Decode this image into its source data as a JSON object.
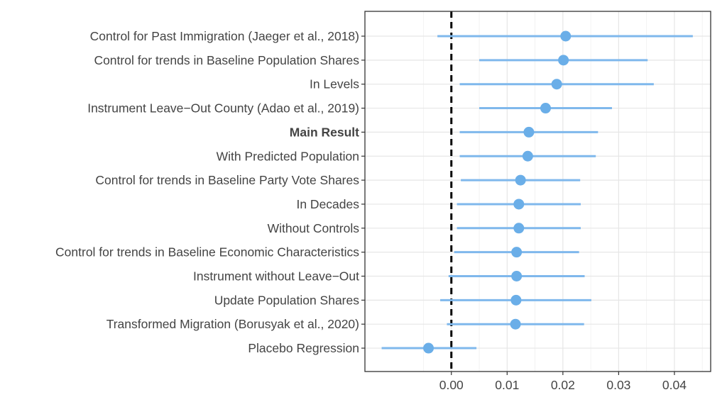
{
  "chart_data": {
    "type": "scatter",
    "subtype": "coefficient-plot",
    "title": "",
    "xlabel": "",
    "ylabel": "",
    "xlim": [
      -0.0155,
      0.0465
    ],
    "x_ticks": [
      {
        "value": 0.0,
        "label": "0.00"
      },
      {
        "value": 0.01,
        "label": "0.01"
      },
      {
        "value": 0.02,
        "label": "0.02"
      },
      {
        "value": 0.03,
        "label": "0.03"
      },
      {
        "value": 0.04,
        "label": "0.04"
      }
    ],
    "reference_line": {
      "x": 0,
      "style": "dashed",
      "color": "#000000"
    },
    "grid": true,
    "point_color": "#6aaee8",
    "line_color": "#7fb8ec",
    "items": [
      {
        "label": "Control for Past Immigration (Jaeger et al., 2018)",
        "estimate": 0.0205,
        "lower": -0.0025,
        "upper": 0.0433,
        "bold": false
      },
      {
        "label": "Control for trends in Baseline Population Shares",
        "estimate": 0.0201,
        "lower": 0.005,
        "upper": 0.0352,
        "bold": false
      },
      {
        "label": "In Levels",
        "estimate": 0.0189,
        "lower": 0.0015,
        "upper": 0.0363,
        "bold": false
      },
      {
        "label": "Instrument Leave−Out County (Adao et al., 2019)",
        "estimate": 0.0169,
        "lower": 0.005,
        "upper": 0.0288,
        "bold": false
      },
      {
        "label": "Main Result",
        "estimate": 0.0139,
        "lower": 0.0015,
        "upper": 0.0263,
        "bold": true
      },
      {
        "label": "With Predicted Population",
        "estimate": 0.0137,
        "lower": 0.0015,
        "upper": 0.0259,
        "bold": false
      },
      {
        "label": "Control for trends in Baseline Party Vote Shares",
        "estimate": 0.0124,
        "lower": 0.0017,
        "upper": 0.0231,
        "bold": false
      },
      {
        "label": "In Decades",
        "estimate": 0.0121,
        "lower": 0.001,
        "upper": 0.0232,
        "bold": false
      },
      {
        "label": "Without Controls",
        "estimate": 0.0121,
        "lower": 0.001,
        "upper": 0.0232,
        "bold": false
      },
      {
        "label": "Control for trends in Baseline Economic Characteristics",
        "estimate": 0.0117,
        "lower": 0.0005,
        "upper": 0.0229,
        "bold": false
      },
      {
        "label": "Instrument without Leave−Out",
        "estimate": 0.0117,
        "lower": -0.0005,
        "upper": 0.0239,
        "bold": false
      },
      {
        "label": "Update Population Shares",
        "estimate": 0.0116,
        "lower": -0.002,
        "upper": 0.0251,
        "bold": false
      },
      {
        "label": "Transformed Migration (Borusyak et al., 2020)",
        "estimate": 0.0115,
        "lower": -0.0008,
        "upper": 0.0238,
        "bold": false
      },
      {
        "label": "Placebo Regression",
        "estimate": -0.0041,
        "lower": -0.0125,
        "upper": 0.0045,
        "bold": false
      }
    ]
  }
}
